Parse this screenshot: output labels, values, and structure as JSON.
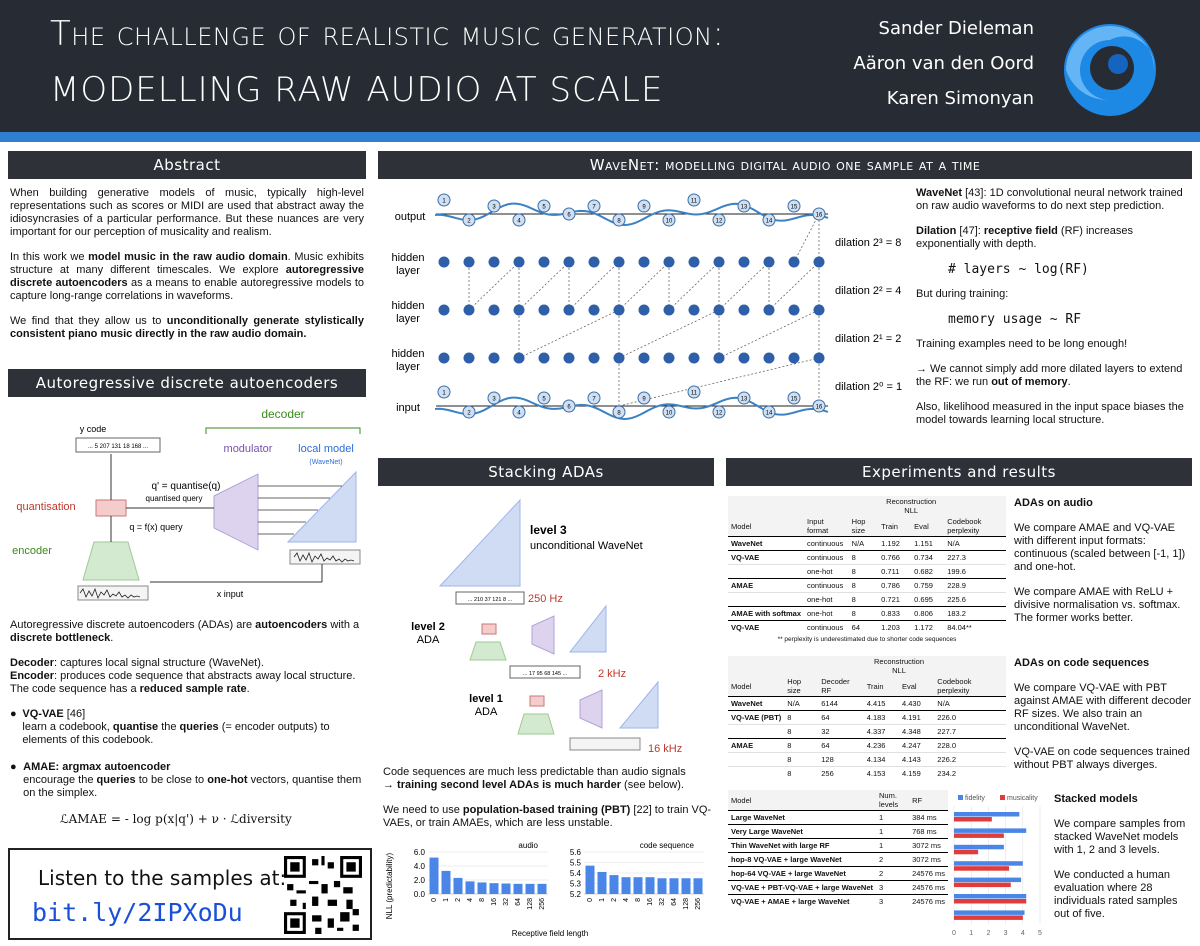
{
  "header": {
    "title_line1": "The challenge of realistic music generation:",
    "title_line2": "modelling raw audio at scale",
    "authors": [
      "Sander Dieleman",
      "Aäron van den Oord",
      "Karen Simonyan"
    ]
  },
  "abstract": {
    "heading": "Abstract",
    "p1": "When building generative models of music, typically high-level representations such as scores or MIDI are used that abstract away the idiosyncrasies of a particular performance. But these nuances are very important for our perception of musicality and realism.",
    "p2a": "In this work we ",
    "p2b": "model music in the raw audio domain",
    "p2c": ". Music exhibits structure at many different timescales. We explore ",
    "p2d": "autoregressive discrete autoencoders",
    "p2e": " as a means to enable autoregressive models to capture long-range correlations in waveforms.",
    "p3a": "We find that they allow us to ",
    "p3b": "unconditionally generate stylistically consistent piano music directly in the raw audio domain."
  },
  "ada": {
    "heading": "Autoregressive discrete autoencoders",
    "diagram": {
      "decoder": "decoder",
      "y_code": "y  code",
      "code_seq": "... 5 207 131 18 168 ...",
      "modulator": "modulator",
      "local_model": "local model",
      "wavenet": "(WaveNet)",
      "quantisation": "quantisation",
      "q_prime": "q' = quantise(q)",
      "quantised_query": "quantised query",
      "q_eq": "q = f(x)  query",
      "encoder": "encoder",
      "x_input": "x  input"
    },
    "p1a": "Autoregressive discrete autoencoders (ADAs) are ",
    "p1b": "autoencoders",
    "p1c": " with a ",
    "p1d": "discrete bottleneck",
    "p2a": "Decoder",
    "p2b": ": captures local signal structure (WaveNet).",
    "p2c": "Encoder",
    "p2d": ": produces code sequence that abstracts away local structure. The code sequence has a ",
    "p2e": "reduced sample rate",
    "b1a": "VQ-VAE",
    "b1b": " [46]",
    "b1c": "learn a codebook, ",
    "b1d": "quantise",
    "b1e": " the ",
    "b1f": "queries",
    "b1g": " (= encoder outputs) to elements of this codebook.",
    "b2a": "AMAE: argmax autoencoder",
    "b2b": "encourage the ",
    "b2c": "queries",
    "b2d": " to be close to ",
    "b2e": "one-hot",
    "b2f": " vectors, quantise them on the simplex.",
    "formula": "ℒAMAE = - log p(x|q') + ν · ℒdiversity"
  },
  "listen": {
    "text": "Listen to the samples at:",
    "link": "bit.ly/2IPXoDu"
  },
  "wavenet": {
    "heading": "WaveNet: modelling digital audio one sample at a time",
    "labels": {
      "output": "output",
      "hidden": "hidden",
      "layer": "layer",
      "input": "input"
    },
    "dilations": [
      "dilation 2³ = 8",
      "dilation 2² = 4",
      "dilation 2¹ = 2",
      "dilation 2⁰ = 1"
    ],
    "p1a": "WaveNet",
    "p1b": " [43]: 1D convolutional neural network  trained on raw audio waveforms to do next step prediction.",
    "p2a": "Dilation",
    "p2b": " [47]: ",
    "p2c": "receptive field",
    "p2d": " (RF) increases exponentially with depth.",
    "code1": "# layers ~ log(RF)",
    "p3": "But during training:",
    "code2": "memory usage ~ RF",
    "p4": "Training examples need to be long enough!",
    "p5a": "→ We cannot simply add more dilated layers to extend the RF: we run ",
    "p5b": "out of memory",
    "p6": "Also, likelihood measured in the input space biases the model towards learning local structure."
  },
  "stacking": {
    "heading": "Stacking ADAs",
    "level3": "level 3",
    "level3_sub": "unconditional WaveNet",
    "level2": "level 2",
    "level1": "level 1",
    "ada": "ADA",
    "code2": "... 210 37 121 8 ...",
    "code1": "... 17 95 68 145 ...",
    "f1": "250 Hz",
    "f2": "2 kHz",
    "f3": "16 kHz",
    "p1a": "Code sequences are much less predictable than audio signals",
    "p1b": "→ training second level ADAs is much harder",
    "p1c": " (see below).",
    "p2a": "We need to use ",
    "p2b": "population-based training (PBT)",
    "p2c": " [22] to train VQ-VAEs, or train AMAEs, which are less unstable."
  },
  "chart_data": [
    {
      "type": "bar",
      "title": "audio",
      "xlabel": "Receptive field length",
      "ylabel": "NLL (predictability)",
      "categories": [
        "0",
        "1",
        "2",
        "4",
        "8",
        "16",
        "32",
        "64",
        "128",
        "256"
      ],
      "values": [
        5.2,
        3.3,
        2.3,
        1.8,
        1.65,
        1.55,
        1.5,
        1.45,
        1.45,
        1.45
      ],
      "ylim": [
        0,
        6
      ],
      "yticks": [
        "0.0",
        "2.0",
        "4.0",
        "6.0"
      ]
    },
    {
      "type": "bar",
      "title": "code sequence",
      "xlabel": "Receptive field length",
      "ylabel": "NLL (predictability)",
      "categories": [
        "0",
        "1",
        "2",
        "4",
        "8",
        "16",
        "32",
        "64",
        "128",
        "256"
      ],
      "values": [
        5.47,
        5.41,
        5.38,
        5.36,
        5.36,
        5.36,
        5.35,
        5.35,
        5.35,
        5.35
      ],
      "ylim": [
        5.2,
        5.6
      ],
      "yticks": [
        "5.2",
        "5.3",
        "5.4",
        "5.5",
        "5.6"
      ]
    },
    {
      "type": "bar",
      "title": "",
      "legend": [
        "fidelity",
        "musicality"
      ],
      "colors": [
        "#4a86e8",
        "#e03c3c"
      ],
      "categories": [
        "Large WaveNet",
        "Very Large WaveNet",
        "Thin WaveNet with large RF",
        "hop-8 VQ-VAE + large WaveNet",
        "hop-64 VQ-VAE + large WaveNet",
        "VQ-VAE + PBT-VQ-VAE + large WaveNet",
        "VQ-VAE + AMAE + large WaveNet"
      ],
      "series": [
        {
          "name": "fidelity",
          "values": [
            3.8,
            4.2,
            2.9,
            4.0,
            3.9,
            4.2,
            4.1
          ]
        },
        {
          "name": "musicality",
          "values": [
            2.2,
            2.9,
            1.4,
            3.2,
            3.3,
            4.2,
            4.0
          ]
        }
      ],
      "xlim": [
        0,
        5
      ],
      "xticks": [
        "0",
        "1",
        "2",
        "3",
        "4",
        "5"
      ]
    }
  ],
  "experiments": {
    "heading": "Experiments and results",
    "t1": {
      "head1": [
        "Model",
        "Input format",
        "Hop size",
        "Train",
        "Eval",
        "Codebook perplexity"
      ],
      "recon": "Reconstruction NLL",
      "rows": [
        [
          "WaveNet",
          "continuous",
          "N/A",
          "1.192",
          "1.151",
          "N/A"
        ],
        [
          "VQ-VAE",
          "continuous",
          "8",
          "0.766",
          "0.734",
          "227.3"
        ],
        [
          "",
          "one-hot",
          "8",
          "0.711",
          "0.682",
          "199.6"
        ],
        [
          "AMAE",
          "continuous",
          "8",
          "0.786",
          "0.759",
          "228.9"
        ],
        [
          "",
          "one-hot",
          "8",
          "0.721",
          "0.695",
          "225.6"
        ],
        [
          "AMAE with softmax",
          "one-hot",
          "8",
          "0.833",
          "0.806",
          "183.2"
        ],
        [
          "VQ-VAE",
          "continuous",
          "64",
          "1.203",
          "1.172",
          "84.04**"
        ]
      ],
      "note": "** perplexity is underestimated due to shorter code sequences"
    },
    "t2": {
      "head1": [
        "Model",
        "Hop size",
        "Decoder RF",
        "Train",
        "Eval",
        "Codebook perplexity"
      ],
      "recon": "Reconstruction NLL",
      "rows": [
        [
          "WaveNet",
          "N/A",
          "6144",
          "4.415",
          "4.430",
          "N/A"
        ],
        [
          "VQ-VAE (PBT)",
          "8",
          "64",
          "4.183",
          "4.191",
          "226.0"
        ],
        [
          "",
          "8",
          "32",
          "4.337",
          "4.348",
          "227.7"
        ],
        [
          "AMAE",
          "8",
          "64",
          "4.236",
          "4.247",
          "228.0"
        ],
        [
          "",
          "8",
          "128",
          "4.134",
          "4.143",
          "226.2"
        ],
        [
          "",
          "8",
          "256",
          "4.153",
          "4.159",
          "234.2"
        ]
      ]
    },
    "t3": {
      "head1": [
        "Model",
        "Num. levels",
        "RF"
      ],
      "rows": [
        [
          "Large WaveNet",
          "1",
          "384 ms"
        ],
        [
          "Very Large WaveNet",
          "1",
          "768 ms"
        ],
        [
          "Thin WaveNet with large RF",
          "1",
          "3072 ms"
        ],
        [
          "hop-8 VQ-VAE + large WaveNet",
          "2",
          "3072 ms"
        ],
        [
          "hop-64 VQ-VAE + large WaveNet",
          "2",
          "24576 ms"
        ],
        [
          "VQ-VAE + PBT-VQ-VAE + large WaveNet",
          "3",
          "24576 ms"
        ],
        [
          "VQ-VAE + AMAE + large WaveNet",
          "3",
          "24576 ms"
        ]
      ]
    },
    "s1": {
      "title": "ADAs on audio",
      "p1": "We compare AMAE and VQ-VAE with different input formats: continuous (scaled between [-1, 1]) and one-hot.",
      "p2": "We compare AMAE with ReLU + divisive normalisation vs. softmax. The former works better."
    },
    "s2": {
      "title": "ADAs on code sequences",
      "p1": "We compare VQ-VAE with PBT against AMAE with different decoder RF sizes. We also train an unconditional WaveNet.",
      "p2": "VQ-VAE on code sequences trained without PBT always diverges."
    },
    "s3": {
      "title": "Stacked models",
      "p1": "We compare samples from stacked WaveNet models with 1, 2 and 3 levels.",
      "p2": "We conducted a human evaluation where 28 individuals rated samples out of five."
    }
  }
}
